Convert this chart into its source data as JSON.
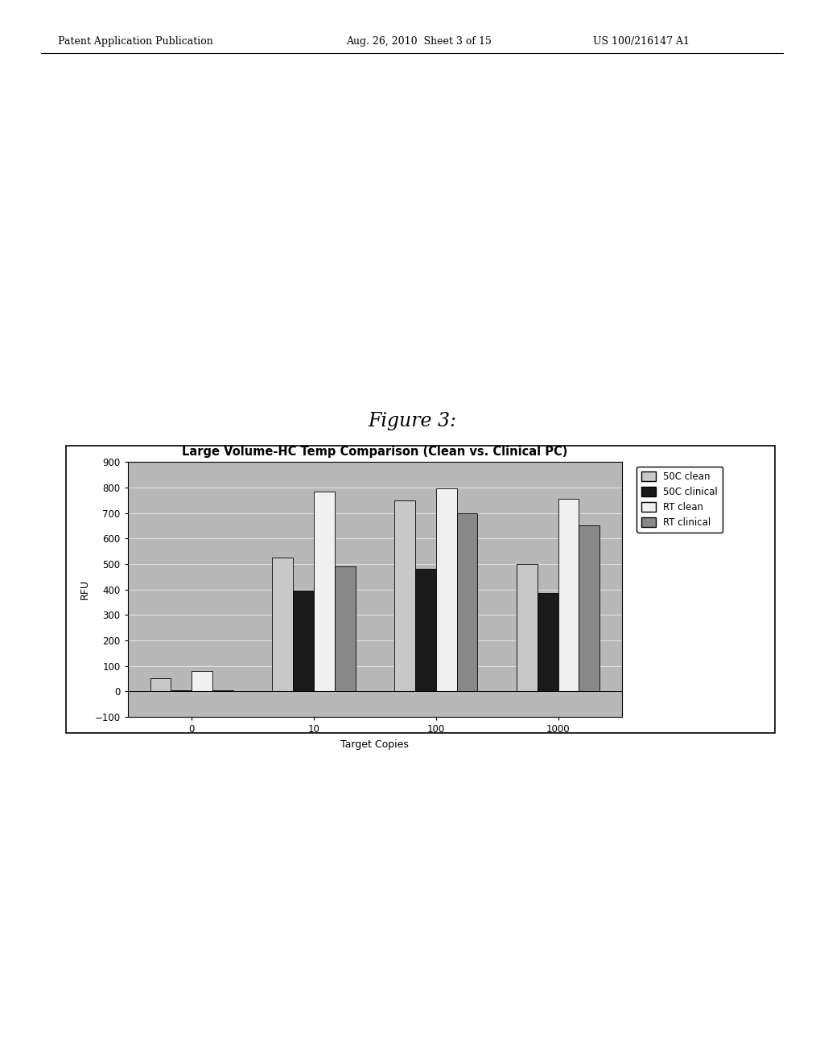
{
  "title": "Large Volume-HC Temp Comparison (Clean vs. Clinical PC)",
  "xlabel": "Target Copies",
  "ylabel": "RFU",
  "figure_title": "Figure 3:",
  "patent_left": "Patent Application Publication",
  "patent_mid": "Aug. 26, 2010  Sheet 3 of 15",
  "patent_right": "US 100/216147 A1",
  "categories": [
    "0",
    "10",
    "100",
    "1000"
  ],
  "series": {
    "50C clean": [
      50,
      525,
      750,
      500
    ],
    "50C clinical": [
      3,
      395,
      480,
      385
    ],
    "RT clean": [
      80,
      785,
      795,
      755
    ],
    "RT clinical": [
      5,
      490,
      700,
      650
    ]
  },
  "bar_styles": [
    {
      "label": "50C clean",
      "facecolor": "#c8c8c8",
      "edgecolor": "#000000",
      "hatch": null
    },
    {
      "label": "50C clinical",
      "facecolor": "#1a1a1a",
      "edgecolor": "#000000",
      "hatch": null
    },
    {
      "label": "RT clean",
      "facecolor": "#f0f0f0",
      "edgecolor": "#000000",
      "hatch": null
    },
    {
      "label": "RT clinical",
      "facecolor": "#888888",
      "edgecolor": "#000000",
      "hatch": null
    }
  ],
  "ylim": [
    -100,
    900
  ],
  "yticks": [
    -100,
    0,
    100,
    200,
    300,
    400,
    500,
    600,
    700,
    800,
    900
  ],
  "plot_bg": "#b8b8b8",
  "bar_width": 0.17,
  "legend_fontsize": 8.5,
  "title_fontsize": 10.5,
  "axis_label_fontsize": 9,
  "tick_fontsize": 8.5,
  "figure_title_fontsize": 17,
  "header_fontsize": 9
}
